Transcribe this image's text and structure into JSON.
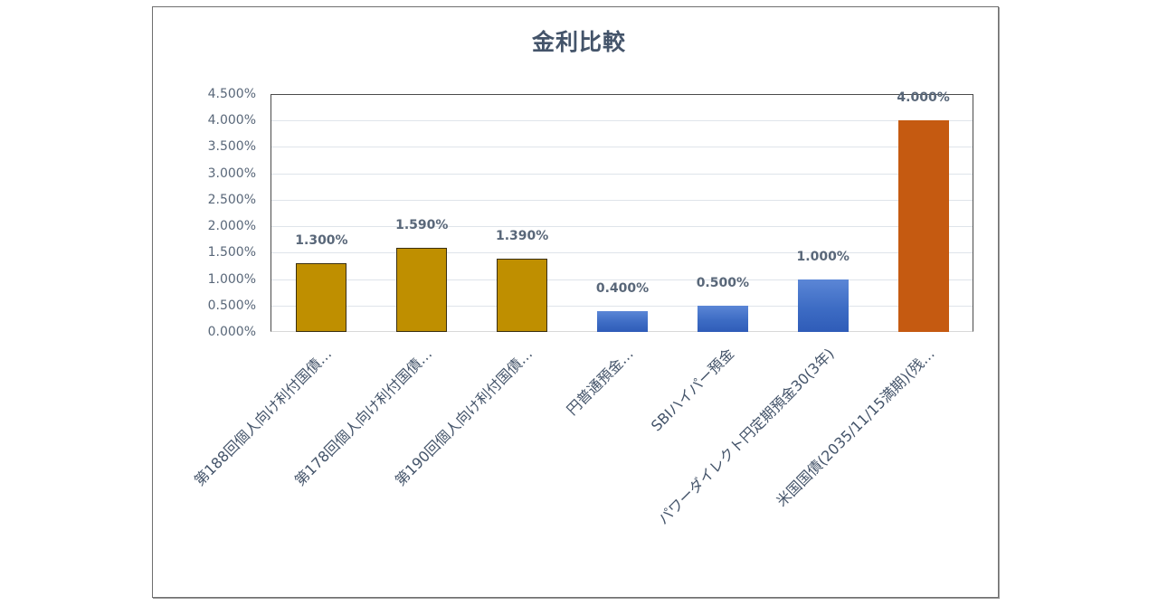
{
  "chart_data": {
    "type": "bar",
    "title": "金利比較",
    "xlabel": "",
    "ylabel": "",
    "ylim": [
      0,
      4.5
    ],
    "yticks": [
      "0.000%",
      "0.500%",
      "1.000%",
      "1.500%",
      "2.000%",
      "2.500%",
      "3.000%",
      "3.500%",
      "4.000%",
      "4.500%"
    ],
    "grid": true,
    "legend": "none",
    "categories": [
      "第188回個人向け利付国債…",
      "第178回個人向け利付国債…",
      "第190回個人向け利付国債…",
      "円普通預金…",
      "SBIハイパー預金",
      "パワーダイレクト円定期預金30(3年)",
      "米国国債(2035/11/15満期)(残…"
    ],
    "values": [
      1.3,
      1.59,
      1.39,
      0.4,
      0.5,
      1.0,
      4.0
    ],
    "data_labels": [
      "1.300%",
      "1.590%",
      "1.390%",
      "0.400%",
      "0.500%",
      "1.000%",
      "4.000%"
    ],
    "bar_colors": [
      "#bf8f00",
      "#bf8f00",
      "#bf8f00",
      "#4472c4",
      "#4472c4",
      "#4472c4",
      "#c55a11"
    ]
  }
}
